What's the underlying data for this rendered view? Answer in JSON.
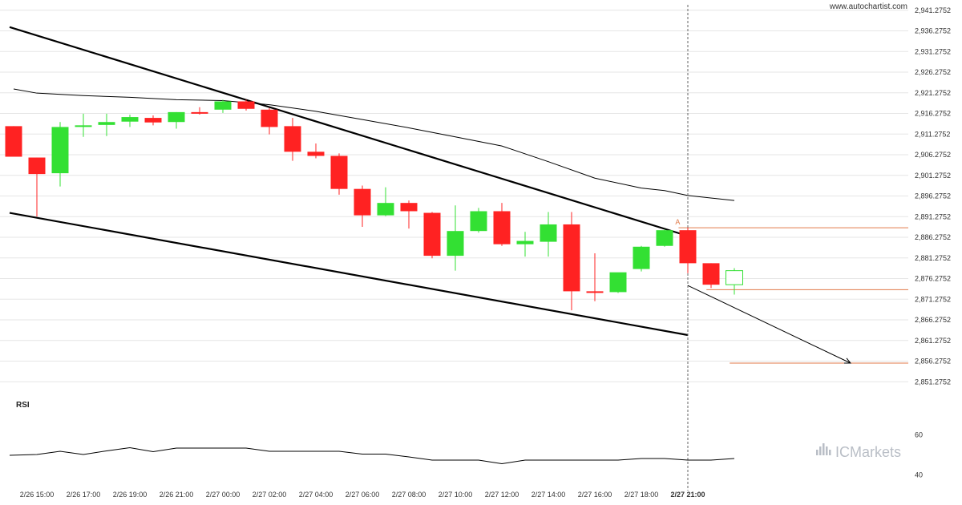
{
  "source_text": "www.autochartist.com",
  "brand": {
    "prefix": "IC",
    "name": "Markets"
  },
  "colors": {
    "bull": "#33e033",
    "bear": "#ff2222",
    "level": "#e07a4a",
    "trendline": "#000000",
    "ma": "#000000",
    "grid": "#e6e6e6",
    "brand": "#b9bec6"
  },
  "chart_data": {
    "type": "candlestick",
    "title": "",
    "y_ticks": [
      "2,941.2752",
      "2,936.2752",
      "2,931.2752",
      "2,926.2752",
      "2,921.2752",
      "2,916.2752",
      "2,911.2752",
      "2,906.2752",
      "2,901.2752",
      "2,896.2752",
      "2,891.2752",
      "2,886.2752",
      "2,881.2752",
      "2,876.2752",
      "2,871.2752",
      "2,866.2752",
      "2,861.2752",
      "2,856.2752",
      "2,851.2752"
    ],
    "ylim": [
      2849.2,
      2942.4
    ],
    "x_ticks": [
      "2/26 15:00",
      "2/26 17:00",
      "2/26 19:00",
      "2/26 21:00",
      "2/27 00:00",
      "2/27 02:00",
      "2/27 04:00",
      "2/27 06:00",
      "2/27 08:00",
      "2/27 10:00",
      "2/27 12:00",
      "2/27 14:00",
      "2/27 16:00",
      "2/27 18:00",
      "2/27 21:00"
    ],
    "x_tick_bar_index": [
      1,
      3,
      5,
      7,
      9,
      11,
      13,
      15,
      17,
      19,
      21,
      23,
      25,
      27,
      29
    ],
    "highlight_x_tick": "2/27 21:00",
    "vertical_marker_bar": 29,
    "candles": [
      {
        "o": 2913.2,
        "h": 2913.2,
        "c": 2905.8,
        "l": 2905.8
      },
      {
        "o": 2905.6,
        "h": 2905.6,
        "c": 2901.6,
        "l": 2891.3
      },
      {
        "o": 2901.8,
        "h": 2914.2,
        "c": 2913.0,
        "l": 2898.6
      },
      {
        "o": 2913.4,
        "h": 2916.2,
        "c": 2913.4,
        "l": 2910.6
      },
      {
        "o": 2913.5,
        "h": 2916.2,
        "c": 2914.2,
        "l": 2910.8
      },
      {
        "o": 2914.3,
        "h": 2916.0,
        "c": 2915.4,
        "l": 2913.0
      },
      {
        "o": 2915.2,
        "h": 2915.8,
        "c": 2914.1,
        "l": 2913.4
      },
      {
        "o": 2914.2,
        "h": 2916.6,
        "c": 2916.6,
        "l": 2912.6
      },
      {
        "o": 2916.6,
        "h": 2917.8,
        "c": 2916.4,
        "l": 2916.0
      },
      {
        "o": 2917.2,
        "h": 2919.6,
        "c": 2919.2,
        "l": 2916.4
      },
      {
        "o": 2919.2,
        "h": 2919.6,
        "c": 2917.4,
        "l": 2917.0
      },
      {
        "o": 2917.2,
        "h": 2917.6,
        "c": 2913.0,
        "l": 2911.2
      },
      {
        "o": 2913.2,
        "h": 2915.2,
        "c": 2907.0,
        "l": 2904.8
      },
      {
        "o": 2907.0,
        "h": 2909.0,
        "c": 2906.0,
        "l": 2905.4
      },
      {
        "o": 2906.0,
        "h": 2906.6,
        "c": 2898.0,
        "l": 2896.6
      },
      {
        "o": 2898.0,
        "h": 2898.8,
        "c": 2891.6,
        "l": 2888.8
      },
      {
        "o": 2891.6,
        "h": 2898.4,
        "c": 2894.6,
        "l": 2891.4
      },
      {
        "o": 2894.6,
        "h": 2895.2,
        "c": 2892.6,
        "l": 2888.4
      },
      {
        "o": 2892.2,
        "h": 2892.4,
        "c": 2881.8,
        "l": 2881.2
      },
      {
        "o": 2881.8,
        "h": 2894.0,
        "c": 2887.8,
        "l": 2878.2
      },
      {
        "o": 2887.8,
        "h": 2893.4,
        "c": 2892.6,
        "l": 2887.4
      },
      {
        "o": 2892.6,
        "h": 2894.6,
        "c": 2884.6,
        "l": 2884.2
      },
      {
        "o": 2884.6,
        "h": 2887.6,
        "c": 2885.4,
        "l": 2881.6
      },
      {
        "o": 2885.2,
        "h": 2892.4,
        "c": 2889.4,
        "l": 2881.6
      },
      {
        "o": 2889.4,
        "h": 2892.4,
        "c": 2873.2,
        "l": 2868.6
      },
      {
        "o": 2873.2,
        "h": 2882.4,
        "c": 2873.0,
        "l": 2870.8
      },
      {
        "o": 2873.0,
        "h": 2877.0,
        "c": 2877.8,
        "l": 2872.8
      },
      {
        "o": 2878.6,
        "h": 2884.2,
        "c": 2884.0,
        "l": 2878.0
      },
      {
        "o": 2884.2,
        "h": 2888.2,
        "c": 2888.0,
        "l": 2884.0
      },
      {
        "o": 2888.0,
        "h": 2888.6,
        "c": 2880.0,
        "l": 2877.6
      },
      {
        "o": 2880.0,
        "h": 2880.0,
        "c": 2874.8,
        "l": 2874.0
      },
      {
        "o": 2874.8,
        "h": 2878.8,
        "c": 2878.2,
        "l": 2872.4,
        "hollow": true
      }
    ],
    "moving_average": [
      {
        "bar": 0,
        "v": 2922.2
      },
      {
        "bar": 1,
        "v": 2921.2
      },
      {
        "bar": 3,
        "v": 2920.6
      },
      {
        "bar": 5,
        "v": 2920.2
      },
      {
        "bar": 7,
        "v": 2919.6
      },
      {
        "bar": 9,
        "v": 2919.4
      },
      {
        "bar": 11,
        "v": 2918.4
      },
      {
        "bar": 13,
        "v": 2916.8
      },
      {
        "bar": 15,
        "v": 2914.8
      },
      {
        "bar": 17,
        "v": 2912.8
      },
      {
        "bar": 19,
        "v": 2910.6
      },
      {
        "bar": 21,
        "v": 2908.4
      },
      {
        "bar": 23,
        "v": 2904.6
      },
      {
        "bar": 25,
        "v": 2900.6
      },
      {
        "bar": 27,
        "v": 2898.2
      },
      {
        "bar": 28,
        "v": 2897.6
      },
      {
        "bar": 29,
        "v": 2896.4
      },
      {
        "bar": 31,
        "v": 2895.2
      }
    ],
    "channel_upper": [
      {
        "bar": 0,
        "v": 2937.2
      },
      {
        "bar": 29,
        "v": 2886.6
      }
    ],
    "channel_lower": [
      {
        "bar": 0,
        "v": 2892.2
      },
      {
        "bar": 29,
        "v": 2862.6
      }
    ],
    "levels": [
      {
        "name": "resistance",
        "v": 2888.6,
        "from_bar": 28.6
      },
      {
        "name": "entry",
        "v": 2873.6,
        "from_bar": 29.8
      },
      {
        "name": "target",
        "v": 2855.8,
        "from_bar": 30.8
      }
    ],
    "point_label": {
      "text": "A",
      "bar": 28.6,
      "v": 2889.0
    },
    "forecast_arrow": {
      "from": {
        "bar": 29,
        "v": 2874.6
      },
      "to": {
        "bar": 36,
        "v": 2855.8
      }
    },
    "rsi": {
      "title": "RSI",
      "y_ticks": [
        60,
        40
      ],
      "ylim": [
        35,
        75
      ],
      "values": [
        49.8,
        50.2,
        51.8,
        50.2,
        52.0,
        53.6,
        51.6,
        53.4,
        53.4,
        53.4,
        53.4,
        51.8,
        51.8,
        51.8,
        51.8,
        50.4,
        50.4,
        49.0,
        47.4,
        47.4,
        47.4,
        45.6,
        47.4,
        47.4,
        47.4,
        47.4,
        47.4,
        48.2,
        48.2,
        47.4,
        47.4,
        48.2
      ]
    }
  }
}
